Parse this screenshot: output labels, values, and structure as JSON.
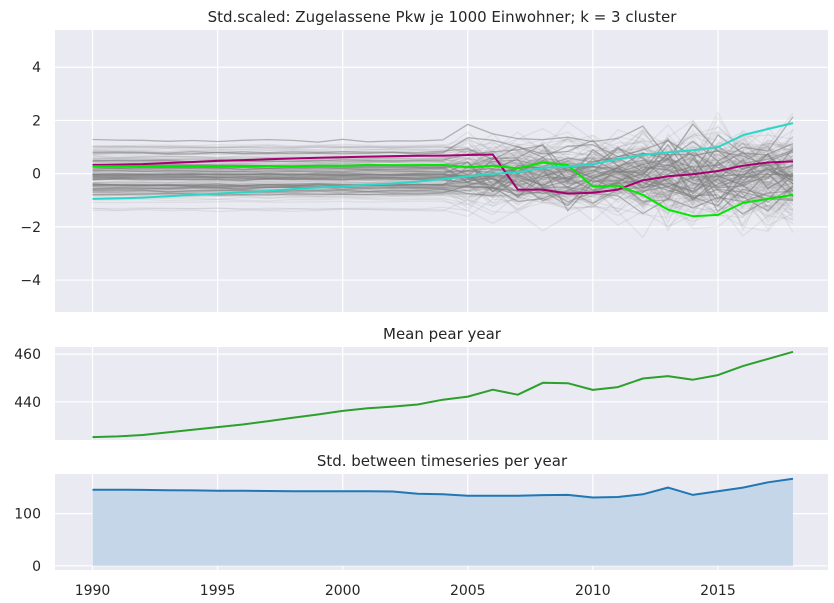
{
  "chart_data": [
    {
      "type": "line",
      "title": "Std.scaled: Zugelassene Pkw je 1000 Einwohner; k = 3 cluster",
      "xlabel": "",
      "ylabel": "",
      "xlim": [
        1988.5,
        2019.4
      ],
      "ylim": [
        -5.2,
        5.4
      ],
      "yticks": [
        -4,
        -2,
        0,
        2,
        4
      ],
      "ytick_labels": [
        "−4",
        "−2",
        "0",
        "2",
        "4"
      ],
      "grid": true,
      "background": "#eaeaf2",
      "background_series_color": "#808080",
      "x": [
        1990,
        1991,
        1992,
        1993,
        1994,
        1995,
        1996,
        1997,
        1998,
        1999,
        2000,
        2001,
        2002,
        2003,
        2004,
        2005,
        2006,
        2007,
        2008,
        2009,
        2010,
        2011,
        2012,
        2013,
        2014,
        2015,
        2016,
        2017,
        2018
      ],
      "series": [
        {
          "color": "#a5006e",
          "values": [
            0.33,
            0.34,
            0.36,
            0.4,
            0.44,
            0.48,
            0.51,
            0.54,
            0.57,
            0.6,
            0.62,
            0.64,
            0.66,
            0.67,
            0.68,
            0.7,
            0.72,
            -0.6,
            -0.6,
            -0.75,
            -0.72,
            -0.6,
            -0.25,
            -0.1,
            -0.02,
            0.1,
            0.3,
            0.42,
            0.46
          ]
        },
        {
          "color": "#00e800",
          "values": [
            0.28,
            0.28,
            0.28,
            0.28,
            0.28,
            0.28,
            0.28,
            0.28,
            0.28,
            0.3,
            0.3,
            0.32,
            0.32,
            0.32,
            0.33,
            0.24,
            0.3,
            0.2,
            0.42,
            0.32,
            -0.48,
            -0.45,
            -0.8,
            -1.35,
            -1.6,
            -1.55,
            -1.1,
            -0.95,
            -0.8
          ]
        },
        {
          "color": "#2ad8c8",
          "values": [
            -0.95,
            -0.93,
            -0.9,
            -0.85,
            -0.8,
            -0.75,
            -0.7,
            -0.65,
            -0.58,
            -0.52,
            -0.48,
            -0.42,
            -0.37,
            -0.3,
            -0.2,
            -0.1,
            0.0,
            0.05,
            0.22,
            0.27,
            0.35,
            0.55,
            0.7,
            0.8,
            0.88,
            1.0,
            1.45,
            1.68,
            1.9
          ]
        }
      ]
    },
    {
      "type": "line",
      "title": "Mean pear year",
      "xlabel": "",
      "ylabel": "",
      "xlim": [
        1988.5,
        2019.4
      ],
      "ylim": [
        424,
        463
      ],
      "yticks": [
        440,
        460
      ],
      "ytick_labels": [
        "440",
        "460"
      ],
      "grid": true,
      "x": [
        1990,
        1991,
        1992,
        1993,
        1994,
        1995,
        1996,
        1997,
        1998,
        1999,
        2000,
        2001,
        2002,
        2003,
        2004,
        2005,
        2006,
        2007,
        2008,
        2009,
        2010,
        2011,
        2012,
        2013,
        2014,
        2015,
        2016,
        2017,
        2018
      ],
      "series": [
        {
          "color": "#2ca02c",
          "values": [
            425.2,
            425.5,
            426.1,
            427.2,
            428.3,
            429.4,
            430.5,
            431.9,
            433.3,
            434.7,
            436.2,
            437.3,
            438.0,
            438.9,
            440.9,
            442.2,
            445.1,
            443.0,
            448.0,
            447.8,
            445.0,
            446.2,
            449.8,
            450.8,
            449.3,
            451.2,
            455.0,
            458.0,
            461.0
          ]
        }
      ]
    },
    {
      "type": "area",
      "title": "Std. between timeseries per year",
      "xlabel": "",
      "ylabel": "",
      "xlim": [
        1988.5,
        2019.4
      ],
      "ylim": [
        -8,
        176
      ],
      "yticks": [
        0,
        100
      ],
      "ytick_labels": [
        "0",
        "100"
      ],
      "xticks": [
        1990,
        1995,
        2000,
        2005,
        2010,
        2015
      ],
      "xtick_labels": [
        "1990",
        "1995",
        "2000",
        "2005",
        "2010",
        "2015"
      ],
      "grid": true,
      "x": [
        1990,
        1991,
        1992,
        1993,
        1994,
        1995,
        1996,
        1997,
        1998,
        1999,
        2000,
        2001,
        2002,
        2003,
        2004,
        2005,
        2006,
        2007,
        2008,
        2009,
        2010,
        2011,
        2012,
        2013,
        2014,
        2015,
        2016,
        2017,
        2018
      ],
      "series": [
        {
          "color": "#1f77b4",
          "fill": "#c3d5e8",
          "values": [
            146,
            146,
            145.5,
            145,
            144.5,
            144,
            144,
            143.5,
            143,
            143,
            143,
            143,
            142.5,
            138,
            137,
            134.5,
            134.5,
            134.5,
            135.5,
            136,
            131,
            132,
            137,
            150,
            136,
            143,
            150,
            160,
            167
          ]
        }
      ]
    }
  ]
}
